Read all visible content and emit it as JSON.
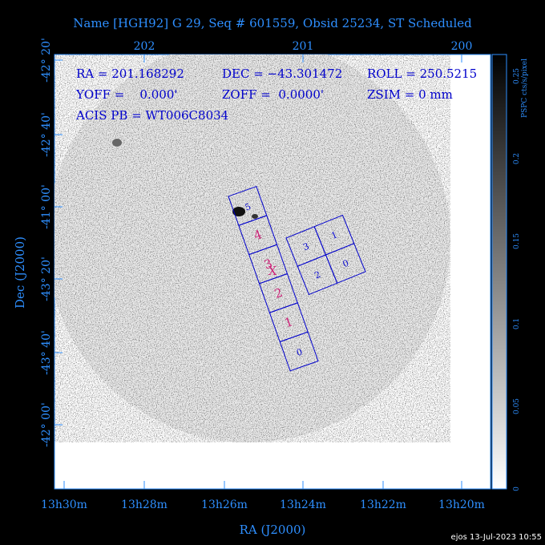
{
  "header": {
    "title": "Name [HGH92] G 29, Seq # 601559, Obsid 25234, ST Scheduled"
  },
  "axes": {
    "top_ticks": [
      "202",
      "201",
      "200"
    ],
    "bottom_ticks": [
      "13h30m",
      "13h28m",
      "13h26m",
      "13h24m",
      "13h22m",
      "13h20m"
    ],
    "left_ticks": [
      "-42° 20'",
      "-42° 40'",
      "-41° 00'",
      "-43° 20'",
      "-43° 40'",
      "-42° 00'"
    ],
    "x_label": "RA (J2000)",
    "y_label": "Dec (J2000)"
  },
  "info": {
    "ra": "RA = 201.168292",
    "dec": "DEC = −43.301472",
    "roll": "ROLL = 250.5215",
    "yoff": "YOFF =    0.000'",
    "zoff": "ZOFF =  0.0000'",
    "zsim": "ZSIM = 0 mm",
    "acis_pb": "ACIS PB = WT006C8034"
  },
  "acis_s": {
    "chips": [
      "5",
      "4",
      "3",
      "2",
      "1",
      "0"
    ]
  },
  "acis_i": {
    "chips": [
      "3",
      "1",
      "2",
      "0"
    ]
  },
  "aimpoint": "X",
  "colorbar": {
    "label": "PSPC cts/s/pixel",
    "ticks": [
      "0",
      "0.05",
      "0.1",
      "0.15",
      "0.2",
      "0.25"
    ]
  },
  "footer": "ejos 13-Jul-2023 10:55"
}
